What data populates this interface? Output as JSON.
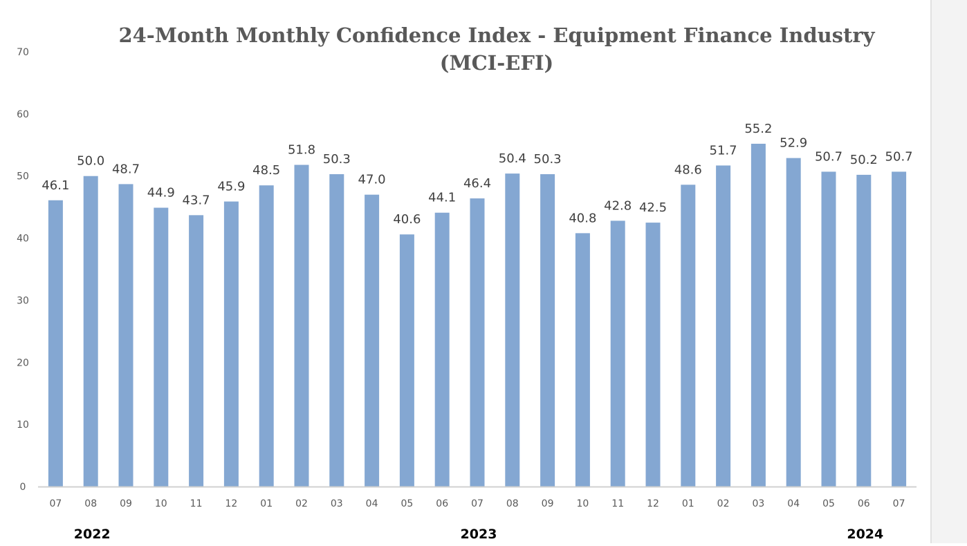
{
  "chart_data": {
    "type": "bar",
    "title": "24-Month Monthly Confidence Index - Equipment Finance Industry",
    "subtitle": "(MCI-EFI)",
    "categories": [
      "07",
      "08",
      "09",
      "10",
      "11",
      "12",
      "01",
      "02",
      "03",
      "04",
      "05",
      "06",
      "07",
      "08",
      "09",
      "10",
      "11",
      "12",
      "01",
      "02",
      "03",
      "04",
      "05",
      "06",
      "07"
    ],
    "values": [
      46.1,
      50.0,
      48.7,
      44.9,
      43.7,
      45.9,
      48.5,
      51.8,
      50.3,
      47.0,
      40.6,
      44.1,
      46.4,
      50.4,
      50.3,
      40.8,
      42.8,
      42.5,
      48.6,
      51.7,
      55.2,
      52.9,
      50.7,
      50.2,
      50.7
    ],
    "data_labels": [
      "46.1",
      "50.0",
      "48.7",
      "44.9",
      "43.7",
      "45.9",
      "48.5",
      "51.8",
      "50.3",
      "47.0",
      "40.6",
      "44.1",
      "46.4",
      "50.4",
      "50.3",
      "40.8",
      "42.8",
      "42.5",
      "48.6",
      "51.7",
      "55.2",
      "52.9",
      "50.7",
      "50.2",
      "50.7"
    ],
    "years": [
      {
        "label": "2022",
        "category_index": 1
      },
      {
        "label": "2023",
        "category_index": 12
      },
      {
        "label": "2024",
        "category_index": 23
      }
    ],
    "yticks": [
      "0",
      "10",
      "20",
      "30",
      "40",
      "50",
      "60",
      "70"
    ],
    "ylim": [
      0,
      70
    ],
    "xlabel": "",
    "ylabel": "",
    "grid": false,
    "legend": "none",
    "bar_color": "#84a7d2",
    "axis_color": "#d0d0d0"
  }
}
